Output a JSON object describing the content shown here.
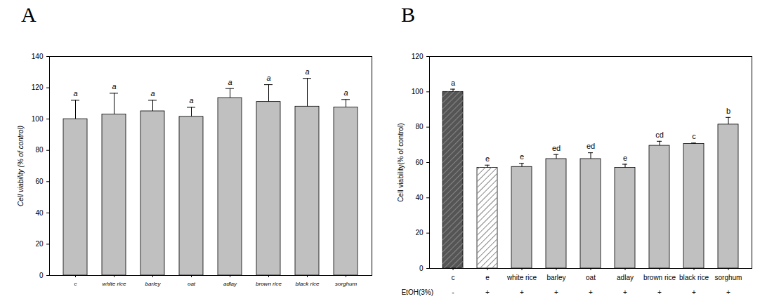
{
  "chart_data": [
    {
      "type": "bar",
      "panel": "A",
      "y_label": "Cell viability (% of control)",
      "categories": [
        "c",
        "white rice",
        "barley",
        "oat",
        "adlay",
        "brown rice",
        "black rice",
        "sorghum"
      ],
      "values": [
        100,
        103,
        105,
        101.5,
        113.5,
        111,
        108,
        107.5
      ],
      "errors": [
        12,
        13.5,
        7,
        6,
        6,
        11,
        18,
        5
      ],
      "letters": [
        "a",
        "a",
        "a",
        "a",
        "a",
        "a",
        "a",
        "a"
      ],
      "color": "#c0c0c0",
      "ylim": [
        0,
        140
      ],
      "yticks": [
        0,
        20,
        40,
        60,
        80,
        100,
        120,
        140
      ]
    },
    {
      "type": "bar",
      "panel": "B",
      "y_label": "Cell viability(% of control)",
      "categories": [
        "c",
        "e",
        "white rice",
        "barley",
        "oat",
        "adlay",
        "brown rice",
        "black rice",
        "sorghum"
      ],
      "values": [
        100,
        57,
        57.5,
        62,
        62,
        57,
        69.5,
        70.5,
        81.5
      ],
      "errors": [
        1.5,
        1.5,
        2,
        2.5,
        3.5,
        2,
        2.5,
        0.5,
        4
      ],
      "letters": [
        "a",
        "e",
        "e",
        "ed",
        "ed",
        "e",
        "cd",
        "c",
        "b"
      ],
      "treatment": {
        "label": "EtOH(3%)",
        "values": [
          "-",
          "+",
          "+",
          "+",
          "+",
          "+",
          "+",
          "+",
          "+"
        ]
      },
      "colors": [
        "#555555",
        "#ffffff",
        "#c0c0c0",
        "#c0c0c0",
        "#c0c0c0",
        "#c0c0c0",
        "#c0c0c0",
        "#c0c0c0",
        "#c0c0c0"
      ],
      "ylim": [
        0,
        120
      ],
      "yticks": [
        0,
        20,
        40,
        60,
        80,
        100,
        120
      ]
    }
  ]
}
